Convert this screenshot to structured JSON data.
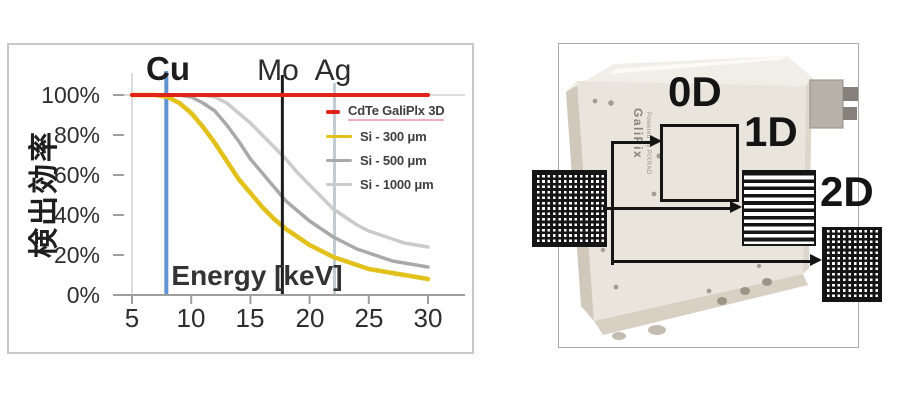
{
  "chart_data": {
    "type": "line",
    "title": "",
    "xlabel": "Energy [keV]",
    "ylabel": "検出効率",
    "xlim": [
      5,
      30
    ],
    "ylim": [
      0,
      100
    ],
    "grid": "minimal",
    "legend_position": "right-inside",
    "x_tick_labels": [
      "5",
      "10",
      "15",
      "20",
      "25",
      "30"
    ],
    "y_tick_labels": [
      "100%",
      "80%",
      "60%",
      "40%",
      "20%",
      "0%"
    ],
    "x": [
      5,
      6,
      7,
      8,
      9,
      10,
      11,
      12,
      13,
      14,
      15,
      16,
      17,
      18,
      19,
      20,
      21,
      22,
      23,
      24,
      25,
      26,
      27,
      28,
      29,
      30
    ],
    "series": [
      {
        "name": "CdTe GaliPlx 3D",
        "color": "#e2231a",
        "width": 4,
        "values": [
          100,
          100,
          100,
          100,
          100,
          100,
          100,
          100,
          100,
          100,
          100,
          100,
          100,
          100,
          100,
          100,
          100,
          100,
          100,
          100,
          100,
          100,
          100,
          100,
          100,
          100
        ]
      },
      {
        "name": "Si - 300 μm",
        "color": "#e2c21a",
        "width": 4.5,
        "values": [
          100,
          100,
          100,
          99,
          96,
          91,
          84,
          76,
          67,
          58,
          51,
          44,
          38,
          33,
          29,
          25,
          22,
          19,
          17,
          15,
          13,
          12,
          11,
          10,
          9,
          8
        ]
      },
      {
        "name": "Si - 500 μm",
        "color": "#a9a9a9",
        "width": 3.5,
        "values": [
          100,
          100,
          100,
          100,
          100,
          99,
          96,
          92,
          85,
          77,
          68,
          61,
          54,
          47,
          42,
          37,
          33,
          29,
          26,
          23,
          21,
          19,
          17,
          16,
          15,
          14
        ]
      },
      {
        "name": "Si - 1000 μm",
        "color": "#cbcbcb",
        "width": 3.5,
        "values": [
          100,
          100,
          100,
          100,
          100,
          100,
          100,
          99,
          96,
          91,
          86,
          80,
          74,
          68,
          61,
          55,
          49,
          43,
          39,
          35,
          32,
          30,
          28,
          26,
          25,
          24
        ]
      }
    ],
    "annotations": [
      {
        "label": "Cu",
        "x": 7.9,
        "color": "#6093d1",
        "width": 4
      },
      {
        "label": "Mo",
        "x": 17.7,
        "color": "#1c1c1c",
        "width": 3
      },
      {
        "label": "Ag",
        "x": 22.1,
        "color": "#c0cbd2",
        "width": 3
      }
    ]
  },
  "right_panel": {
    "mode_labels": [
      "0D",
      "1D",
      "2D"
    ],
    "device_brand": "GaliPix",
    "device_sub": "Powered by PIXRAD"
  }
}
